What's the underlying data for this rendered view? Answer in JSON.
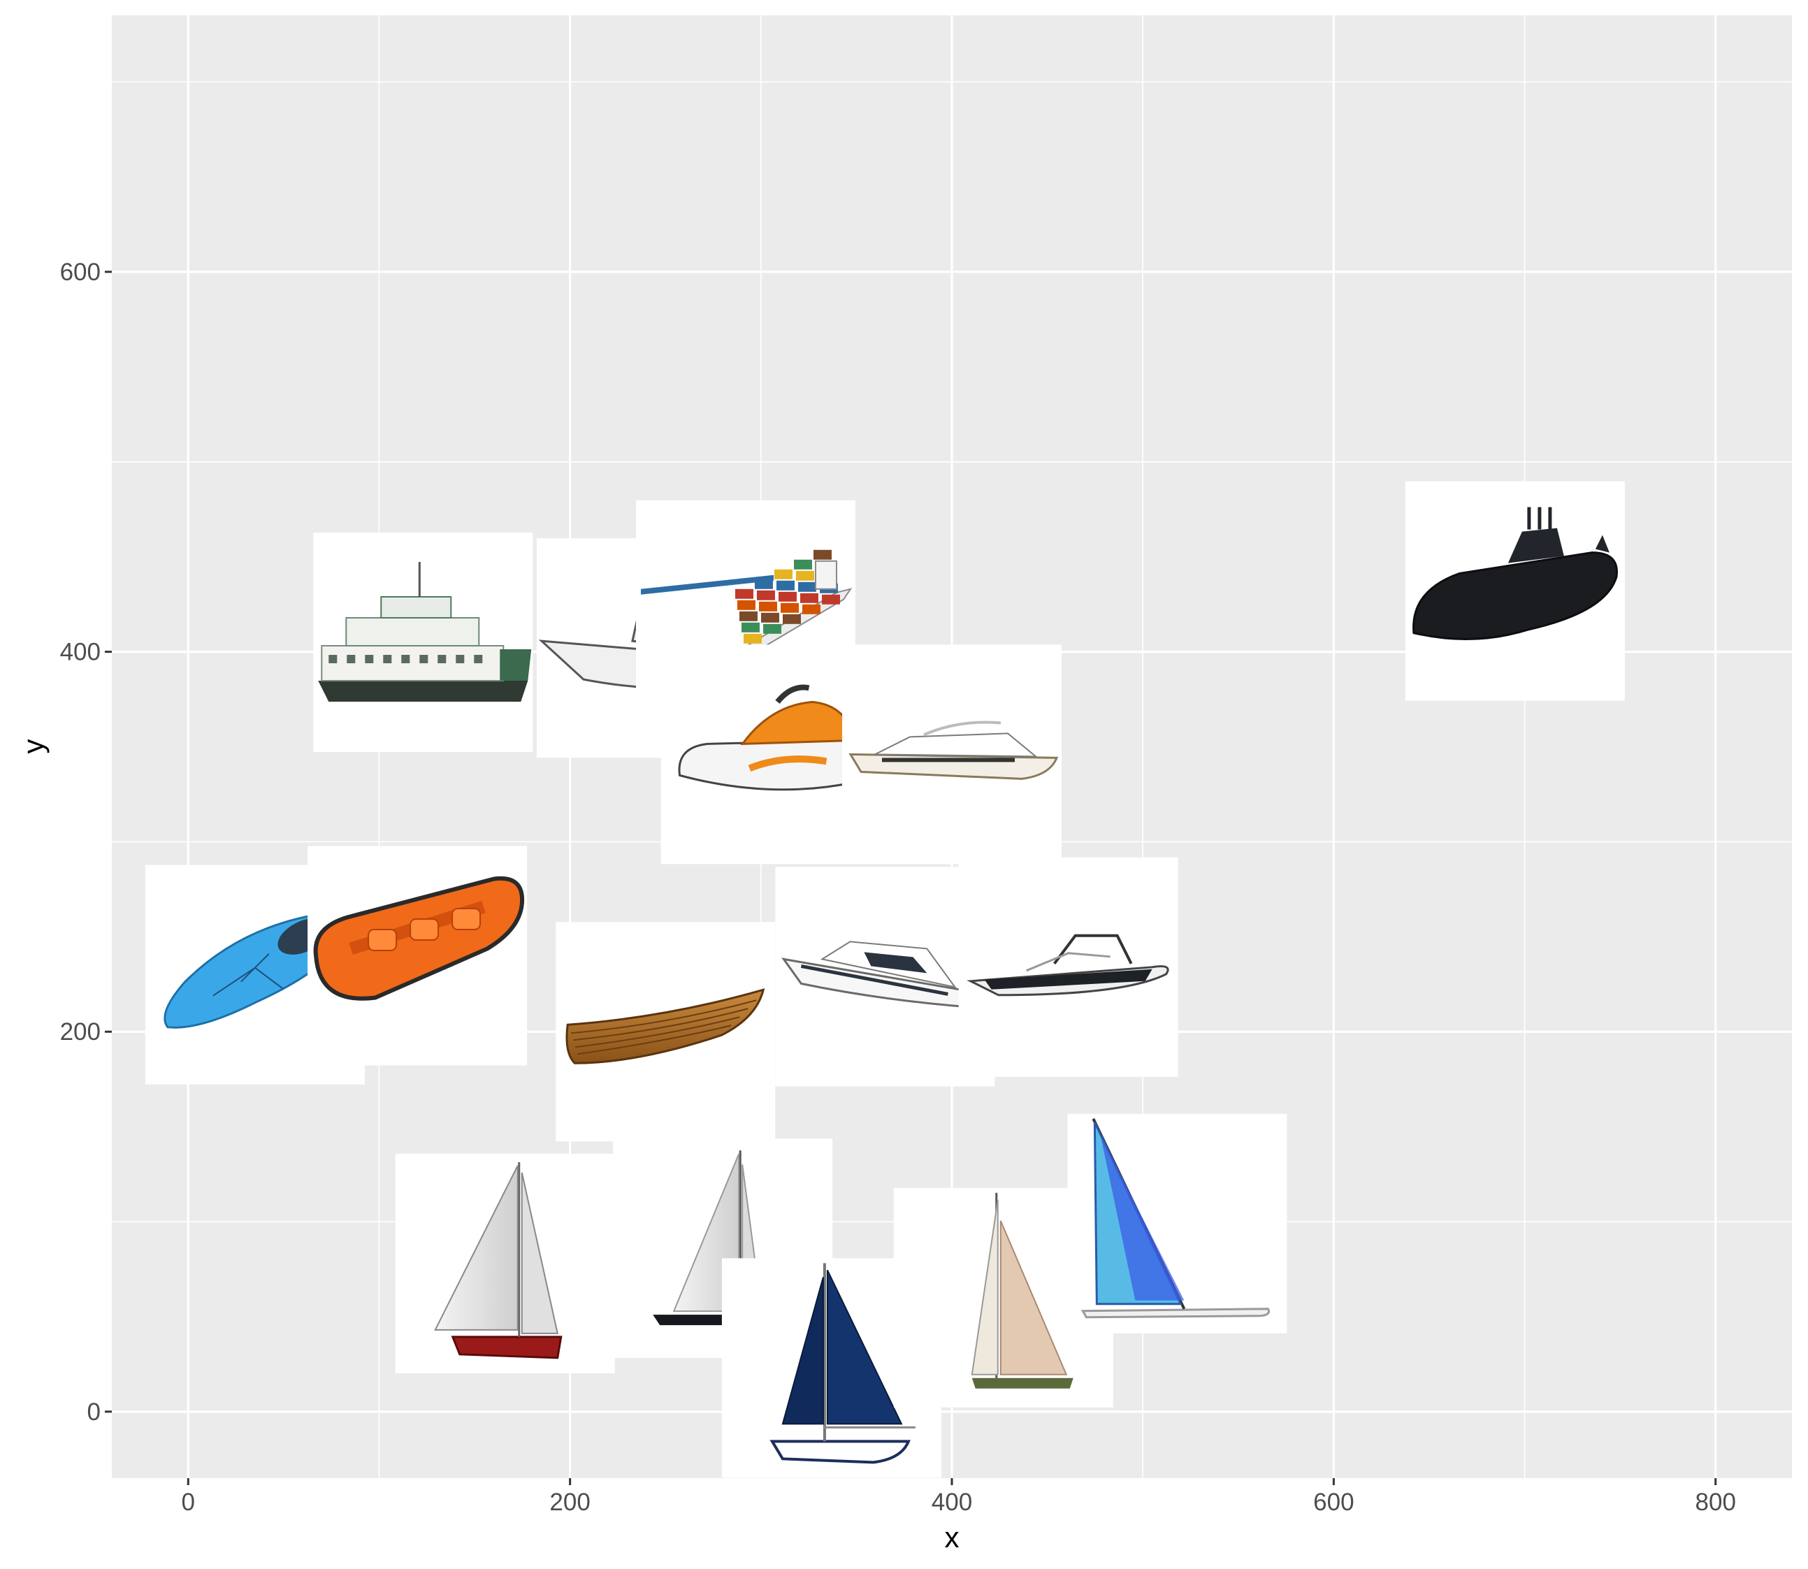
{
  "chart_data": {
    "type": "scatter",
    "title": "",
    "xlabel": "x",
    "ylabel": "y",
    "xlim": [
      -40,
      840
    ],
    "ylim": [
      -35,
      735
    ],
    "x_ticks": [
      0,
      200,
      400,
      600,
      800
    ],
    "y_ticks": [
      0,
      200,
      400,
      600
    ],
    "x_tick_labels": [
      "0",
      "200",
      "400",
      "600",
      "800"
    ],
    "y_tick_labels": [
      "0",
      "200",
      "400",
      "600"
    ],
    "grid": true,
    "legend": "none",
    "panel_color": "#ebebeb",
    "grid_color": "#ffffff",
    "series": [
      {
        "marker": "image",
        "points": [
          {
            "x": 35,
            "y": 230,
            "icon": "kayak-icon"
          },
          {
            "x": 120,
            "y": 240,
            "icon": "inflatable-raft-icon"
          },
          {
            "x": 123,
            "y": 405,
            "icon": "ferry-icon"
          },
          {
            "x": 240,
            "y": 402,
            "icon": "cabin-motorboat-icon"
          },
          {
            "x": 292,
            "y": 422,
            "icon": "container-ship-icon"
          },
          {
            "x": 305,
            "y": 346,
            "icon": "jet-ski-icon"
          },
          {
            "x": 400,
            "y": 346,
            "icon": "motor-yacht-icon"
          },
          {
            "x": 695,
            "y": 432,
            "icon": "submarine-icon"
          },
          {
            "x": 250,
            "y": 200,
            "icon": "rowboat-icon"
          },
          {
            "x": 365,
            "y": 229,
            "icon": "luxury-yacht-icon"
          },
          {
            "x": 461,
            "y": 234,
            "icon": "speedboat-icon"
          },
          {
            "x": 166,
            "y": 78,
            "icon": "dinghy-sailboat-icon"
          },
          {
            "x": 280,
            "y": 86,
            "icon": "sailboat-white-icon"
          },
          {
            "x": 337,
            "y": 23,
            "icon": "blue-sailboat-icon"
          },
          {
            "x": 427,
            "y": 60,
            "icon": "tan-sailboat-icon"
          },
          {
            "x": 518,
            "y": 99,
            "icon": "windsurfer-icon"
          }
        ]
      }
    ]
  }
}
